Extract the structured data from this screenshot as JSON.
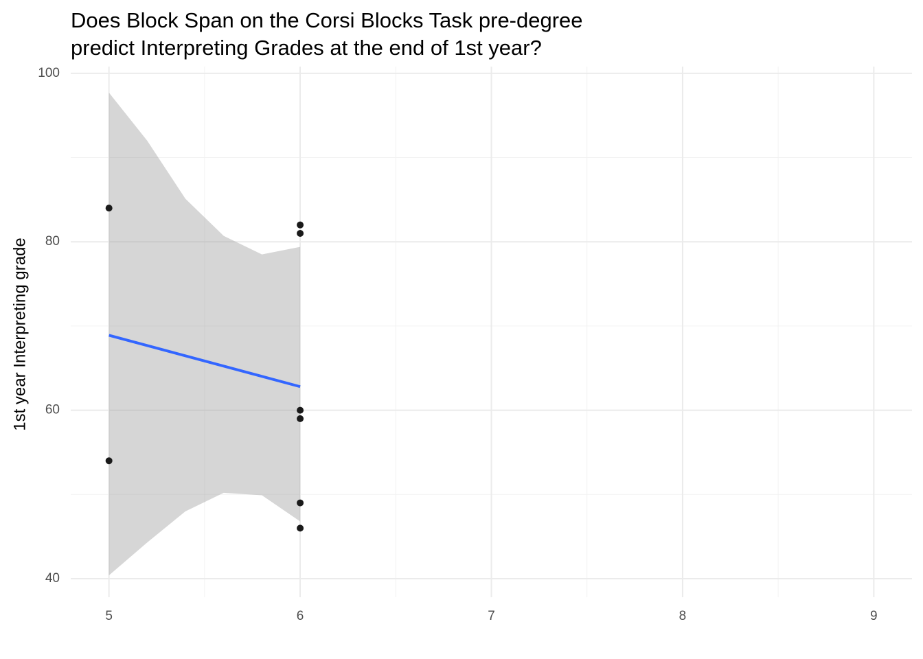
{
  "chart_data": {
    "type": "scatter",
    "title": [
      "Does Block Span on the Corsi Blocks Task pre-degree",
      "predict Interpreting Grades at the end of 1st year?"
    ],
    "ylabel": "1st year Interpreting grade",
    "xlim": [
      4.8,
      9.2
    ],
    "ylim": [
      37.8,
      100.8
    ],
    "xticks": [
      5,
      6,
      7,
      8,
      9
    ],
    "yticks": [
      40,
      60,
      80,
      100
    ],
    "xminor": [
      5.5,
      6.5,
      7.5,
      8.5
    ],
    "yminor": [
      50,
      70,
      90
    ],
    "grid": true,
    "points": {
      "color": "#1a1a1a",
      "x": [
        5,
        5,
        6,
        6,
        6,
        6,
        6,
        6
      ],
      "y": [
        84,
        54,
        82,
        81,
        60,
        59,
        49,
        46
      ]
    },
    "band": {
      "color": "#999999",
      "x": [
        5,
        5.2,
        5.4,
        5.6,
        5.8,
        6
      ],
      "ymin": [
        40.4,
        44.3,
        48,
        50.2,
        49.9,
        46.8
      ],
      "ymax": [
        97.7,
        92,
        85.1,
        80.7,
        78.5,
        79.4
      ]
    },
    "fit": {
      "color": "#3366FF",
      "x": [
        5,
        6
      ],
      "y": [
        68.9,
        62.8
      ]
    }
  }
}
